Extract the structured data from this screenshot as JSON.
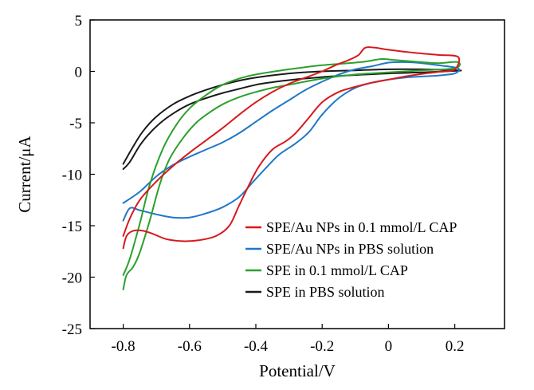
{
  "chart_data": {
    "type": "line",
    "title": "",
    "xlabel": "Potential/V",
    "ylabel": "Current/μA",
    "xlim": [
      -0.9,
      0.35
    ],
    "ylim": [
      -25,
      5
    ],
    "xticks": [
      -0.8,
      -0.6,
      -0.4,
      -0.2,
      0,
      0.2
    ],
    "xtick_labels": [
      "-0.8",
      "-0.6",
      "-0.4",
      "-0.2",
      "0",
      "0.2"
    ],
    "yticks": [
      5,
      0,
      -5,
      -10,
      -15,
      -20,
      -25
    ],
    "ytick_labels": [
      "5",
      "0",
      "-5",
      "-10",
      "-15",
      "-20",
      "-25"
    ],
    "grid": false,
    "legend_position": "lower-right",
    "series": [
      {
        "name": "SPE/Au NPs in 0.1 mmol/L CAP",
        "color": "#d7191c",
        "points": [
          [
            -0.8,
            -17.2
          ],
          [
            -0.79,
            -16.0
          ],
          [
            -0.77,
            -15.5
          ],
          [
            -0.74,
            -15.5
          ],
          [
            -0.71,
            -15.8
          ],
          [
            -0.67,
            -16.3
          ],
          [
            -0.62,
            -16.5
          ],
          [
            -0.57,
            -16.4
          ],
          [
            -0.52,
            -16.0
          ],
          [
            -0.48,
            -15.0
          ],
          [
            -0.45,
            -13.0
          ],
          [
            -0.42,
            -11.0
          ],
          [
            -0.39,
            -9.2
          ],
          [
            -0.35,
            -7.6
          ],
          [
            -0.31,
            -6.8
          ],
          [
            -0.28,
            -6.0
          ],
          [
            -0.24,
            -4.5
          ],
          [
            -0.2,
            -3.0
          ],
          [
            -0.15,
            -2.0
          ],
          [
            -0.1,
            -1.5
          ],
          [
            -0.05,
            -1.1
          ],
          [
            0.0,
            -0.8
          ],
          [
            0.05,
            -0.5
          ],
          [
            0.1,
            -0.25
          ],
          [
            0.15,
            -0.05
          ],
          [
            0.2,
            0.2
          ],
          [
            0.21,
            1.4
          ],
          [
            0.15,
            1.6
          ],
          [
            0.08,
            1.8
          ],
          [
            0.0,
            2.1
          ],
          [
            -0.04,
            2.3
          ],
          [
            -0.07,
            2.3
          ],
          [
            -0.09,
            1.6
          ],
          [
            -0.12,
            1.1
          ],
          [
            -0.16,
            0.6
          ],
          [
            -0.2,
            0.0
          ],
          [
            -0.25,
            -0.6
          ],
          [
            -0.3,
            -1.2
          ],
          [
            -0.35,
            -2.0
          ],
          [
            -0.4,
            -3.0
          ],
          [
            -0.45,
            -4.2
          ],
          [
            -0.5,
            -5.5
          ],
          [
            -0.55,
            -6.7
          ],
          [
            -0.6,
            -7.9
          ],
          [
            -0.65,
            -9.2
          ],
          [
            -0.7,
            -10.7
          ],
          [
            -0.75,
            -12.5
          ],
          [
            -0.78,
            -14.3
          ],
          [
            -0.8,
            -16.0
          ]
        ]
      },
      {
        "name": "SPE/Au NPs in PBS solution",
        "color": "#1f78c8",
        "points": [
          [
            -0.8,
            -14.5
          ],
          [
            -0.78,
            -13.3
          ],
          [
            -0.75,
            -13.5
          ],
          [
            -0.7,
            -13.9
          ],
          [
            -0.65,
            -14.2
          ],
          [
            -0.6,
            -14.2
          ],
          [
            -0.55,
            -13.8
          ],
          [
            -0.5,
            -13.2
          ],
          [
            -0.45,
            -12.2
          ],
          [
            -0.41,
            -10.8
          ],
          [
            -0.37,
            -9.4
          ],
          [
            -0.33,
            -8.1
          ],
          [
            -0.28,
            -7.0
          ],
          [
            -0.24,
            -5.9
          ],
          [
            -0.2,
            -4.2
          ],
          [
            -0.15,
            -2.6
          ],
          [
            -0.1,
            -1.6
          ],
          [
            -0.05,
            -1.1
          ],
          [
            0.0,
            -0.8
          ],
          [
            0.05,
            -0.6
          ],
          [
            0.1,
            -0.5
          ],
          [
            0.15,
            -0.4
          ],
          [
            0.2,
            -0.2
          ],
          [
            0.21,
            0.3
          ],
          [
            0.15,
            0.6
          ],
          [
            0.1,
            0.8
          ],
          [
            0.05,
            0.9
          ],
          [
            0.0,
            0.85
          ],
          [
            -0.05,
            0.5
          ],
          [
            -0.1,
            0.2
          ],
          [
            -0.15,
            -0.3
          ],
          [
            -0.2,
            -1.0
          ],
          [
            -0.25,
            -1.8
          ],
          [
            -0.3,
            -2.8
          ],
          [
            -0.35,
            -3.8
          ],
          [
            -0.4,
            -4.9
          ],
          [
            -0.45,
            -6.0
          ],
          [
            -0.5,
            -6.9
          ],
          [
            -0.55,
            -7.6
          ],
          [
            -0.6,
            -8.3
          ],
          [
            -0.65,
            -9.1
          ],
          [
            -0.7,
            -10.2
          ],
          [
            -0.75,
            -11.7
          ],
          [
            -0.8,
            -12.8
          ]
        ]
      },
      {
        "name": "SPE in 0.1 mmol/L CAP",
        "color": "#2ca02c",
        "points": [
          [
            -0.8,
            -21.2
          ],
          [
            -0.79,
            -19.8
          ],
          [
            -0.77,
            -19.0
          ],
          [
            -0.75,
            -17.6
          ],
          [
            -0.72,
            -14.5
          ],
          [
            -0.69,
            -11.0
          ],
          [
            -0.66,
            -8.5
          ],
          [
            -0.62,
            -6.5
          ],
          [
            -0.58,
            -5.0
          ],
          [
            -0.54,
            -4.0
          ],
          [
            -0.5,
            -3.2
          ],
          [
            -0.45,
            -2.5
          ],
          [
            -0.4,
            -2.0
          ],
          [
            -0.35,
            -1.6
          ],
          [
            -0.3,
            -1.3
          ],
          [
            -0.2,
            -0.7
          ],
          [
            -0.1,
            -0.3
          ],
          [
            0.0,
            -0.1
          ],
          [
            0.1,
            0.1
          ],
          [
            0.2,
            0.3
          ],
          [
            0.21,
            0.9
          ],
          [
            0.15,
            0.8
          ],
          [
            0.1,
            0.9
          ],
          [
            0.06,
            1.0
          ],
          [
            0.02,
            1.1
          ],
          [
            -0.02,
            1.2
          ],
          [
            -0.06,
            1.0
          ],
          [
            -0.1,
            0.85
          ],
          [
            -0.2,
            0.6
          ],
          [
            -0.3,
            0.2
          ],
          [
            -0.4,
            -0.3
          ],
          [
            -0.45,
            -0.7
          ],
          [
            -0.5,
            -1.3
          ],
          [
            -0.55,
            -2.3
          ],
          [
            -0.6,
            -3.6
          ],
          [
            -0.64,
            -5.2
          ],
          [
            -0.68,
            -7.5
          ],
          [
            -0.72,
            -11.0
          ],
          [
            -0.75,
            -14.8
          ],
          [
            -0.78,
            -18.2
          ],
          [
            -0.8,
            -19.8
          ]
        ]
      },
      {
        "name": "SPE in PBS solution",
        "color": "#1a1a1a",
        "points": [
          [
            -0.8,
            -9.5
          ],
          [
            -0.78,
            -8.8
          ],
          [
            -0.75,
            -7.2
          ],
          [
            -0.72,
            -6.0
          ],
          [
            -0.68,
            -4.8
          ],
          [
            -0.64,
            -3.9
          ],
          [
            -0.6,
            -3.2
          ],
          [
            -0.55,
            -2.6
          ],
          [
            -0.5,
            -2.1
          ],
          [
            -0.45,
            -1.7
          ],
          [
            -0.4,
            -1.3
          ],
          [
            -0.35,
            -1.05
          ],
          [
            -0.3,
            -0.85
          ],
          [
            -0.2,
            -0.55
          ],
          [
            -0.1,
            -0.35
          ],
          [
            0.0,
            -0.2
          ],
          [
            0.1,
            -0.1
          ],
          [
            0.2,
            0.05
          ],
          [
            0.21,
            0.1
          ],
          [
            0.1,
            0.2
          ],
          [
            0.0,
            0.2
          ],
          [
            -0.1,
            0.1
          ],
          [
            -0.2,
            0.0
          ],
          [
            -0.3,
            -0.2
          ],
          [
            -0.4,
            -0.6
          ],
          [
            -0.45,
            -0.9
          ],
          [
            -0.5,
            -1.3
          ],
          [
            -0.55,
            -1.8
          ],
          [
            -0.6,
            -2.4
          ],
          [
            -0.65,
            -3.2
          ],
          [
            -0.7,
            -4.4
          ],
          [
            -0.74,
            -5.8
          ],
          [
            -0.77,
            -7.3
          ],
          [
            -0.8,
            -9.0
          ]
        ]
      }
    ]
  }
}
